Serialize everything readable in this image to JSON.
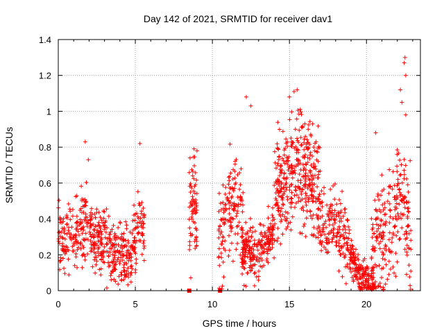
{
  "chart_data": {
    "type": "scatter",
    "title": "Day 142 of 2021, SRMTID for receiver dav1",
    "xlabel": "GPS time / hours",
    "ylabel": "SRMTID / TECUs",
    "xlim": [
      0,
      23.5
    ],
    "ylim": [
      0,
      1.4
    ],
    "xticks": [
      "0",
      "5",
      "10",
      "15",
      "20"
    ],
    "yticks": [
      "0",
      "0.2",
      "0.4",
      "0.6",
      "0.8",
      "1",
      "1.2",
      "1.4"
    ],
    "grid": true,
    "marker": "+",
    "color": "#ff0000",
    "series": [
      {
        "name": "SRMTID",
        "segments": [
          {
            "t0": 0.0,
            "t1": 5.6,
            "n": 520,
            "base": [
              [
                0,
                0.3
              ],
              [
                1,
                0.3
              ],
              [
                1.8,
                0.4
              ],
              [
                2.5,
                0.3
              ],
              [
                3.2,
                0.25
              ],
              [
                4.2,
                0.18
              ],
              [
                4.8,
                0.2
              ],
              [
                5.2,
                0.38
              ],
              [
                5.6,
                0.32
              ]
            ],
            "spread": 0.09
          },
          {
            "t0": 8.5,
            "t1": 9.0,
            "n": 70,
            "base": [
              [
                8.5,
                0.35
              ],
              [
                8.8,
                0.55
              ],
              [
                9.0,
                0.4
              ]
            ],
            "spread": 0.13
          },
          {
            "t0": 10.4,
            "t1": 12.0,
            "n": 150,
            "base": [
              [
                10.4,
                0.3
              ],
              [
                11,
                0.45
              ],
              [
                11.5,
                0.5
              ],
              [
                12,
                0.4
              ]
            ],
            "spread": 0.15
          },
          {
            "t0": 11.9,
            "t1": 14.0,
            "n": 220,
            "base": [
              [
                11.9,
                0.2
              ],
              [
                12.5,
                0.2
              ],
              [
                13,
                0.22
              ],
              [
                13.5,
                0.28
              ],
              [
                14,
                0.35
              ]
            ],
            "spread": 0.07
          },
          {
            "t0": 14.0,
            "t1": 17.0,
            "n": 380,
            "base": [
              [
                14,
                0.5
              ],
              [
                14.8,
                0.6
              ],
              [
                15.5,
                0.7
              ],
              [
                16.2,
                0.65
              ],
              [
                17,
                0.5
              ]
            ],
            "spread": 0.16
          },
          {
            "t0": 17.0,
            "t1": 18.9,
            "n": 160,
            "base": [
              [
                17,
                0.35
              ],
              [
                18,
                0.4
              ],
              [
                18.9,
                0.25
              ]
            ],
            "spread": 0.1
          },
          {
            "t0": 18.9,
            "t1": 20.5,
            "n": 180,
            "base": [
              [
                18.9,
                0.2
              ],
              [
                19.5,
                0.1
              ],
              [
                20.2,
                0.05
              ],
              [
                20.5,
                0.02
              ]
            ],
            "spread": 0.05
          },
          {
            "t0": 20.3,
            "t1": 22.9,
            "n": 240,
            "base": [
              [
                20.3,
                0.2
              ],
              [
                21,
                0.3
              ],
              [
                21.8,
                0.4
              ],
              [
                22.3,
                0.6
              ],
              [
                22.9,
                0.25
              ]
            ],
            "spread": 0.15
          }
        ],
        "extremes": [
          [
            1.75,
            0.83
          ],
          [
            1.95,
            0.73
          ],
          [
            12.2,
            1.08
          ],
          [
            12.5,
            1.03
          ],
          [
            15.3,
            1.11
          ],
          [
            15.5,
            1.12
          ],
          [
            15.0,
            1.08
          ],
          [
            16.0,
            0.93
          ],
          [
            22.2,
            1.12
          ],
          [
            22.5,
            1.3
          ],
          [
            22.45,
            1.27
          ],
          [
            22.55,
            1.2
          ],
          [
            22.3,
            1.05
          ],
          [
            22.55,
            0.98
          ],
          [
            9.0,
            0.78
          ],
          [
            8.55,
            0.74
          ],
          [
            20.6,
            0.88
          ],
          [
            5.3,
            0.82
          ]
        ]
      }
    ],
    "gap_markers": [
      8.5,
      10.5
    ]
  }
}
